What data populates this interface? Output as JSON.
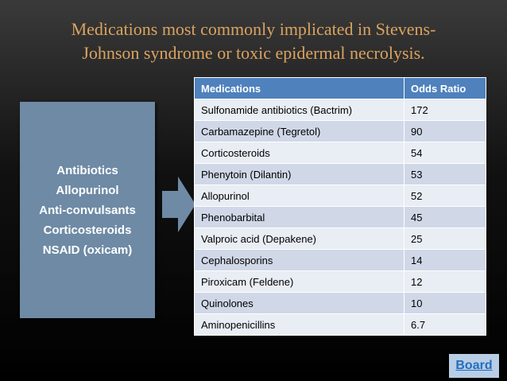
{
  "title": {
    "lines": [
      "Medications most commonly implicated in Stevens-",
      "Johnson syndrome or toxic epidermal necrolysis."
    ]
  },
  "box": {
    "lines": [
      "Antibiotics",
      "Allopurinol",
      "Anti-convulsants",
      "Corticosteroids",
      "NSAID (oxicam)"
    ]
  },
  "table": {
    "header": [
      "Medications",
      "Odds Ratio"
    ],
    "rows": [
      [
        "Sulfonamide antibiotics (Bactrim)",
        172
      ],
      [
        "Carbamazepine (Tegretol)",
        90
      ],
      [
        "Corticosteroids",
        54
      ],
      [
        "Phenytoin (Dilantin)",
        53
      ],
      [
        "Allopurinol",
        52
      ],
      [
        "Phenobarbital",
        45
      ],
      [
        "Valproic acid (Depakene)",
        25
      ],
      [
        "Cephalosporins",
        14
      ],
      [
        "Piroxicam (Feldene)",
        12
      ],
      [
        "Quinolones",
        10
      ],
      [
        "Aminopenicillins",
        6.7
      ]
    ]
  },
  "button": {
    "label": "Board"
  }
}
